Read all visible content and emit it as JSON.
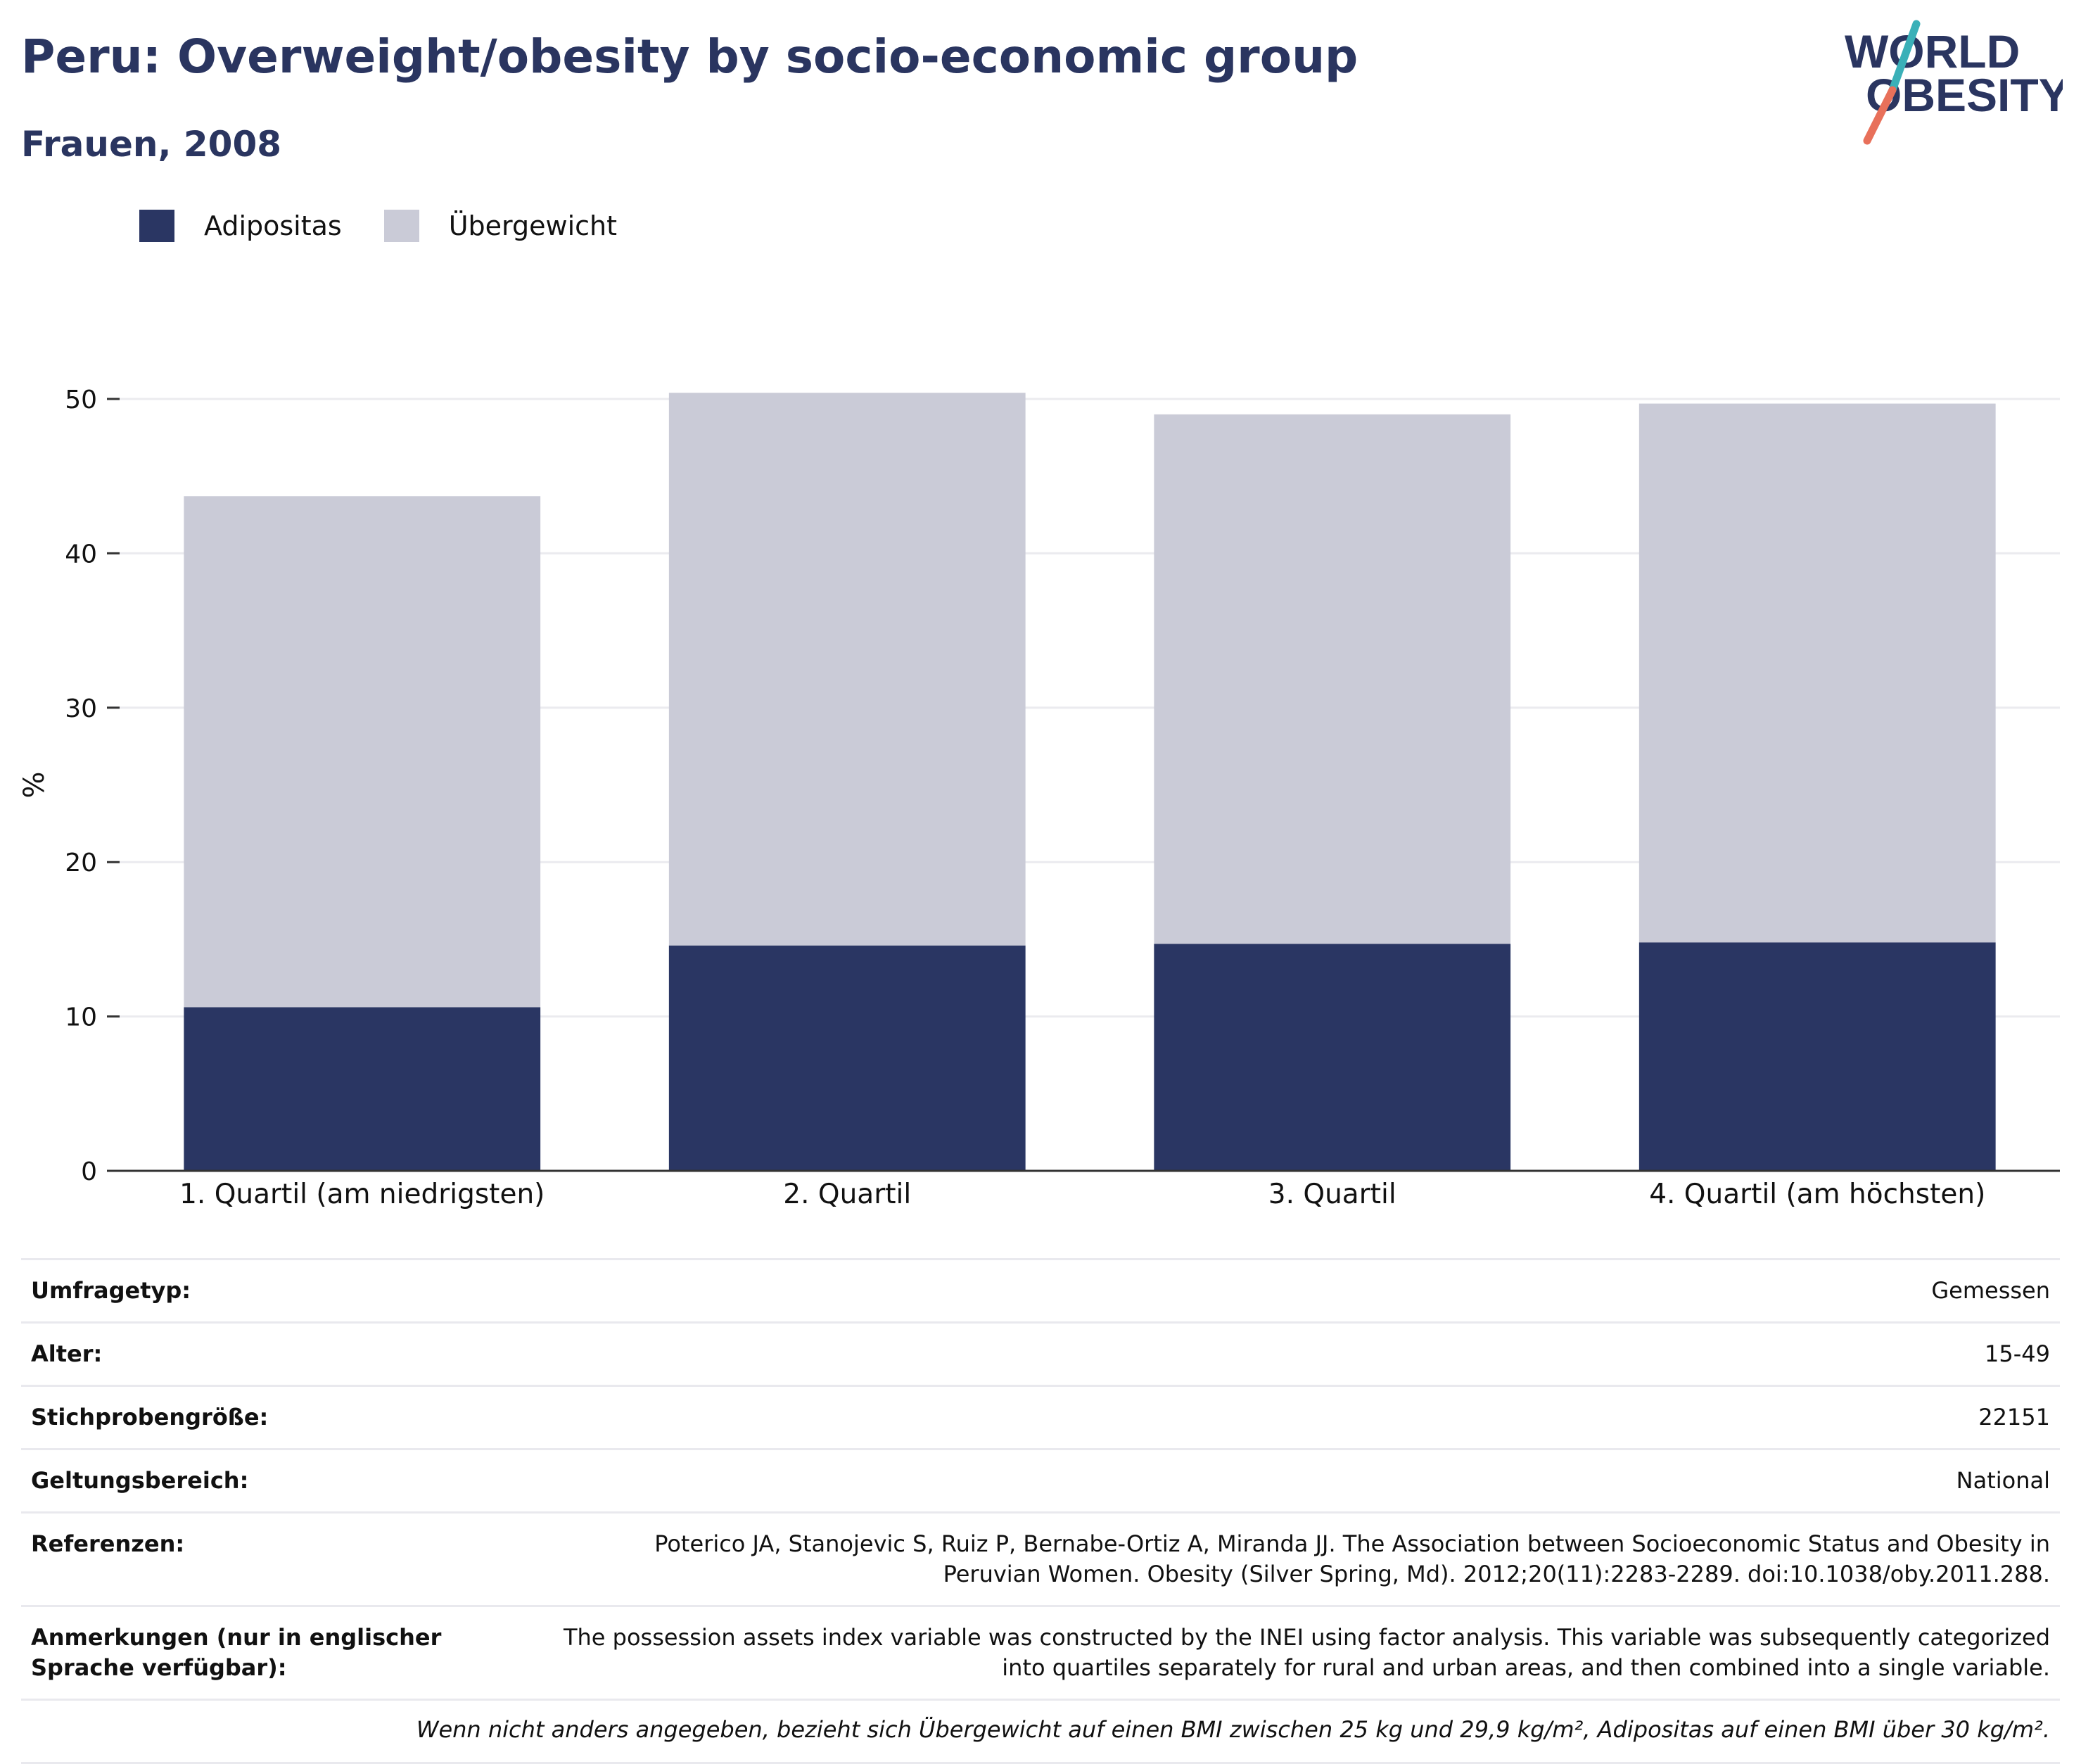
{
  "title": "Peru: Overweight/obesity by socio-economic group",
  "subtitle": "Frauen, 2008",
  "logo": {
    "line1": "WORLD",
    "line2": "OBESITY",
    "accent_teal": "#3ab0b8",
    "accent_coral": "#e8705a",
    "text_color": "#2a3560"
  },
  "legend": [
    {
      "label": "Adipositas",
      "color": "#2a3663"
    },
    {
      "label": "Übergewicht",
      "color": "#cacbd7"
    }
  ],
  "chart_data": {
    "type": "bar",
    "stacked": true,
    "ylabel": "%",
    "ylim": [
      0,
      50
    ],
    "yticks": [
      0,
      10,
      20,
      30,
      40,
      50
    ],
    "grid": true,
    "legend_position": "top-left",
    "categories": [
      "1. Quartil (am niedrigsten)",
      "2. Quartil",
      "3. Quartil",
      "4. Quartil (am höchsten)"
    ],
    "series": [
      {
        "name": "Adipositas",
        "color": "#2a3663",
        "values": [
          10.6,
          14.6,
          14.7,
          14.8
        ]
      },
      {
        "name": "Übergewicht",
        "color": "#cacbd7",
        "values": [
          33.1,
          35.8,
          34.3,
          34.9
        ]
      }
    ]
  },
  "info": [
    {
      "label": "Umfragetyp:",
      "value": "Gemessen"
    },
    {
      "label": "Alter:",
      "value": "15-49"
    },
    {
      "label": "Stichprobengröße:",
      "value": "22151"
    },
    {
      "label": "Geltungsbereich:",
      "value": "National"
    },
    {
      "label": "Referenzen:",
      "value": "Poterico JA, Stanojevic S, Ruiz P, Bernabe-Ortiz A, Miranda JJ. The Association between Socioeconomic Status and Obesity in Peruvian Women. Obesity (Silver Spring, Md). 2012;20(11):2283-2289. doi:10.1038/oby.2011.288."
    },
    {
      "label": "Anmerkungen (nur in englischer Sprache verfügbar):",
      "value": "The possession assets index variable was constructed by the INEI using factor analysis. This variable was subsequently categorized into quartiles separately for rural and urban areas, and then combined into a single variable."
    }
  ],
  "footnote": "Wenn nicht anders angegeben, bezieht sich Übergewicht auf einen BMI zwischen 25 kg und 29,9 kg/m², Adipositas auf einen BMI über 30 kg/m²."
}
